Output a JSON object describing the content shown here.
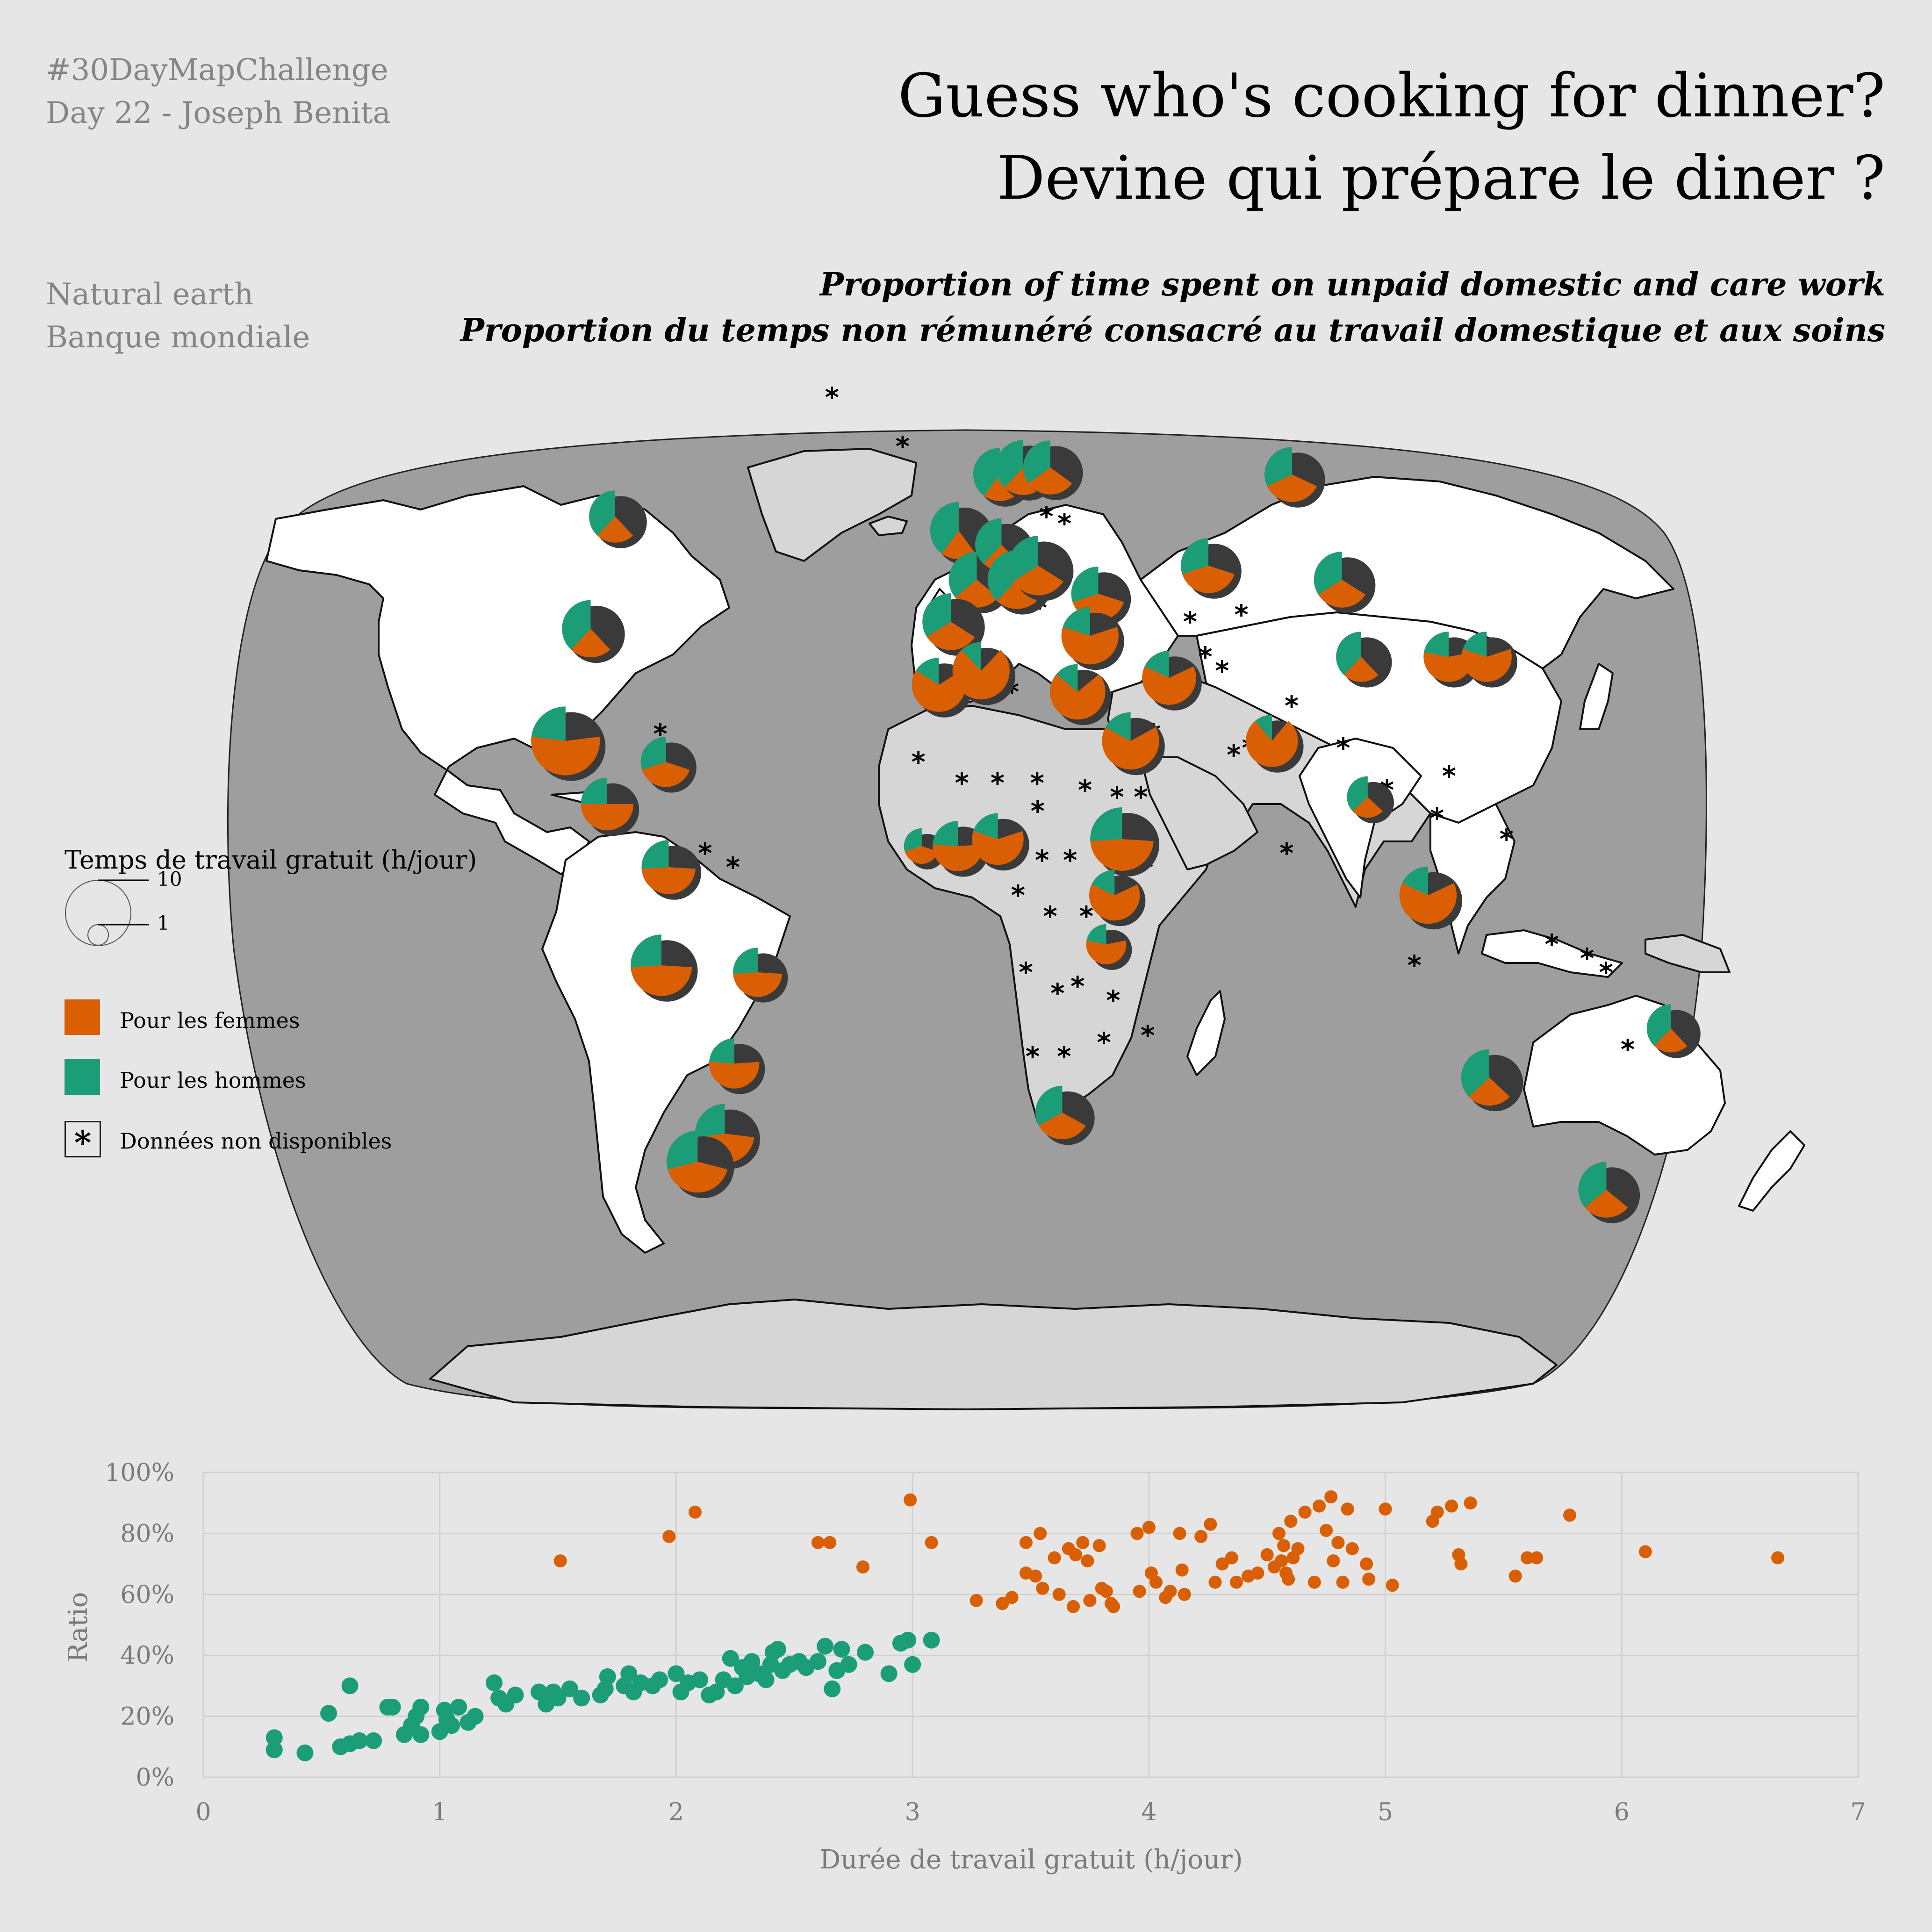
{
  "header": {
    "hashtag": "#30DayMapChallenge",
    "author_line": "Day 22 - Joseph Benita",
    "source_1": "Natural earth",
    "source_2": "Banque mondiale",
    "title_en": "Guess who's cooking for dinner?",
    "title_fr": "Devine qui prépare le diner ?",
    "subtitle_en": "Proportion of time spent on unpaid domestic and care work",
    "subtitle_fr": "Proportion du temps non rémunéré consacré au travail domestique et aux soins"
  },
  "colors": {
    "background": "#e6e6e6",
    "ocean": "#9e9e9e",
    "land_with_data": "#ffffff",
    "land_no_data": "#d6d6d6",
    "women": "#d95f02",
    "men": "#1b9e77",
    "pie_shadow": "#3a3a3a",
    "grid": "#d0d0d0",
    "axis_text": "#7a7a7a"
  },
  "legend": {
    "title": "Temps de travail gratuit (h/jour)",
    "size_large": "10",
    "size_small": "1",
    "women_label": "Pour les femmes",
    "men_label": "Pour les hommes",
    "na_symbol": "*",
    "na_label": "Données non disponibles"
  },
  "map_pies_lonlat_note": "",
  "map_pies": [
    {
      "lon": -100,
      "lat": 55,
      "women_share": 0.62,
      "total": 5.4
    },
    {
      "lon": -100,
      "lat": 39,
      "women_share": 0.62,
      "total": 6.5
    },
    {
      "lon": -102,
      "lat": 23,
      "women_share": 0.77,
      "total": 9.4
    },
    {
      "lon": -76,
      "lat": 20,
      "women_share": 0.7,
      "total": 5.0
    },
    {
      "lon": -90,
      "lat": 14,
      "women_share": 0.75,
      "total": 5.5
    },
    {
      "lon": -74,
      "lat": 5,
      "women_share": 0.74,
      "total": 5.8
    },
    {
      "lon": -76,
      "lat": -9,
      "women_share": 0.74,
      "total": 7.5
    },
    {
      "lon": -52,
      "lat": -10,
      "women_share": 0.74,
      "total": 4.8
    },
    {
      "lon": -59,
      "lat": -23,
      "women_share": 0.76,
      "total": 5.0
    },
    {
      "lon": -63,
      "lat": -33,
      "women_share": 0.73,
      "total": 7.0
    },
    {
      "lon": -71,
      "lat": -37,
      "women_share": 0.71,
      "total": 7.6
    },
    {
      "lon": 10,
      "lat": 61,
      "women_share": 0.6,
      "total": 5.6
    },
    {
      "lon": -2,
      "lat": 53,
      "women_share": 0.6,
      "total": 6.5
    },
    {
      "lon": 17,
      "lat": 62,
      "women_share": 0.62,
      "total": 6.0
    },
    {
      "lon": 25,
      "lat": 62,
      "women_share": 0.65,
      "total": 5.8
    },
    {
      "lon": 96,
      "lat": 61,
      "women_share": 0.68,
      "total": 6.0
    },
    {
      "lon": 3,
      "lat": 46,
      "women_share": 0.64,
      "total": 6.2
    },
    {
      "lon": 10,
      "lat": 51,
      "women_share": 0.62,
      "total": 5.5
    },
    {
      "lon": 14,
      "lat": 46,
      "women_share": 0.62,
      "total": 6.8
    },
    {
      "lon": 20,
      "lat": 48,
      "women_share": 0.66,
      "total": 7.0
    },
    {
      "lon": -4,
      "lat": 40,
      "women_share": 0.66,
      "total": 6.4
    },
    {
      "lon": 36,
      "lat": 44,
      "women_share": 0.7,
      "total": 5.8
    },
    {
      "lon": 67,
      "lat": 48,
      "women_share": 0.7,
      "total": 6.0
    },
    {
      "lon": 103,
      "lat": 46,
      "women_share": 0.66,
      "total": 6.2
    },
    {
      "lon": 104,
      "lat": 35,
      "women_share": 0.62,
      "total": 5.0
    },
    {
      "lon": 127,
      "lat": 35,
      "women_share": 0.78,
      "total": 5.0
    },
    {
      "lon": 137,
      "lat": 35,
      "women_share": 0.8,
      "total": 5.0
    },
    {
      "lon": 33,
      "lat": 38,
      "women_share": 0.8,
      "total": 6.5
    },
    {
      "lon": -7,
      "lat": 31,
      "women_share": 0.84,
      "total": 5.8
    },
    {
      "lon": 4,
      "lat": 33,
      "women_share": 0.88,
      "total": 6.5
    },
    {
      "lon": 29,
      "lat": 30,
      "women_share": 0.86,
      "total": 6.1
    },
    {
      "lon": 42,
      "lat": 23,
      "women_share": 0.83,
      "total": 6.5
    },
    {
      "lon": 53,
      "lat": 32,
      "women_share": 0.82,
      "total": 5.8
    },
    {
      "lon": 78,
      "lat": 23,
      "women_share": 0.89,
      "total": 5.4
    },
    {
      "lon": 101,
      "lat": 15,
      "women_share": 0.63,
      "total": 3.4
    },
    {
      "lon": 115,
      "lat": 1,
      "women_share": 0.82,
      "total": 6.5
    },
    {
      "lon": -11,
      "lat": 8,
      "women_share": 0.7,
      "total": 2.5
    },
    {
      "lon": -2,
      "lat": 8,
      "women_share": 0.76,
      "total": 5.0
    },
    {
      "lon": 8,
      "lat": 9,
      "women_share": 0.8,
      "total": 5.3
    },
    {
      "lon": 39,
      "lat": 9,
      "women_share": 0.74,
      "total": 8.0
    },
    {
      "lon": 37,
      "lat": 1,
      "women_share": 0.82,
      "total": 5.1
    },
    {
      "lon": 35,
      "lat": -6,
      "women_share": 0.78,
      "total": 3.2
    },
    {
      "lon": 25,
      "lat": -30,
      "women_share": 0.67,
      "total": 5.7
    },
    {
      "lon": 134,
      "lat": -25,
      "women_share": 0.63,
      "total": 6.3
    },
    {
      "lon": 172,
      "lat": -41,
      "women_share": 0.64,
      "total": 6.2
    },
    {
      "lon": 178,
      "lat": -18,
      "women_share": 0.62,
      "total": 4.6
    }
  ],
  "map_na_marks": [
    {
      "lon": -42,
      "lat": 72
    },
    {
      "lon": -19,
      "lat": 65
    },
    {
      "lon": 12,
      "lat": 30
    },
    {
      "lon": -12,
      "lat": 20
    },
    {
      "lon": -1,
      "lat": 17
    },
    {
      "lon": 8,
      "lat": 17
    },
    {
      "lon": 18,
      "lat": 17
    },
    {
      "lon": 30,
      "lat": 16
    },
    {
      "lon": 38,
      "lat": 15
    },
    {
      "lon": 44,
      "lat": 15
    },
    {
      "lon": 48,
      "lat": 24
    },
    {
      "lon": 54,
      "lat": 33
    },
    {
      "lon": 67,
      "lat": 33
    },
    {
      "lon": 63,
      "lat": 35
    },
    {
      "lon": 60,
      "lat": 40
    },
    {
      "lon": 74,
      "lat": 41
    },
    {
      "lon": 84,
      "lat": 28
    },
    {
      "lon": 72,
      "lat": 22
    },
    {
      "lon": 96,
      "lat": 22
    },
    {
      "lon": 106,
      "lat": 16
    },
    {
      "lon": 118,
      "lat": 12
    },
    {
      "lon": 122,
      "lat": 18
    },
    {
      "lon": 146,
      "lat": -6
    },
    {
      "lon": 155,
      "lat": -8
    },
    {
      "lon": 160,
      "lat": -10
    },
    {
      "lon": 168,
      "lat": -21
    },
    {
      "lon": 46,
      "lat": -19
    },
    {
      "lon": 23,
      "lat": -13
    },
    {
      "lon": 28,
      "lat": -12
    },
    {
      "lon": 15,
      "lat": -10
    },
    {
      "lon": 21,
      "lat": -2
    },
    {
      "lon": 26,
      "lat": 6
    },
    {
      "lon": 19,
      "lat": 6
    },
    {
      "lon": 13,
      "lat": 1
    },
    {
      "lon": 18,
      "lat": 13
    },
    {
      "lon": 35,
      "lat": -20
    },
    {
      "lon": 17,
      "lat": -22
    },
    {
      "lon": 25,
      "lat": -22
    },
    {
      "lon": 37,
      "lat": -14
    },
    {
      "lon": 30,
      "lat": -2
    },
    {
      "lon": 45,
      "lat": 5
    },
    {
      "lon": -65,
      "lat": 7
    },
    {
      "lon": -58,
      "lat": 5
    },
    {
      "lon": -78,
      "lat": 24
    },
    {
      "lon": 23,
      "lat": 55
    },
    {
      "lon": 28,
      "lat": 54
    },
    {
      "lon": 20,
      "lat": 42
    },
    {
      "lon": 68,
      "lat": 21
    },
    {
      "lon": 80,
      "lat": 7
    },
    {
      "lon": 112,
      "lat": -9
    },
    {
      "lon": 135,
      "lat": 9
    }
  ],
  "chart_data": {
    "type": "scatter",
    "xlabel": "Durée de travail  gratuit (h/jour)",
    "ylabel": "Ratio",
    "xlim": [
      0,
      7
    ],
    "ylim": [
      0,
      1
    ],
    "x_ticks": [
      "0",
      "1",
      "2",
      "3",
      "4",
      "5",
      "6",
      "7"
    ],
    "y_ticks": [
      "0%",
      "20%",
      "40%",
      "60%",
      "80%",
      "100%"
    ],
    "grid": true,
    "series": [
      {
        "color": "#d95f02",
        "points": [
          [
            1.51,
            0.71
          ],
          [
            1.97,
            0.79
          ],
          [
            2.08,
            0.87
          ],
          [
            2.6,
            0.77
          ],
          [
            2.65,
            0.77
          ],
          [
            2.79,
            0.69
          ],
          [
            2.99,
            0.91
          ],
          [
            3.08,
            0.77
          ],
          [
            3.27,
            0.58
          ],
          [
            3.38,
            0.57
          ],
          [
            3.42,
            0.59
          ],
          [
            3.48,
            0.67
          ],
          [
            3.48,
            0.77
          ],
          [
            3.52,
            0.66
          ],
          [
            3.54,
            0.8
          ],
          [
            3.55,
            0.62
          ],
          [
            3.6,
            0.72
          ],
          [
            3.62,
            0.6
          ],
          [
            3.66,
            0.75
          ],
          [
            3.68,
            0.56
          ],
          [
            3.69,
            0.73
          ],
          [
            3.72,
            0.77
          ],
          [
            3.74,
            0.71
          ],
          [
            3.75,
            0.58
          ],
          [
            3.79,
            0.76
          ],
          [
            3.8,
            0.62
          ],
          [
            3.82,
            0.61
          ],
          [
            3.84,
            0.57
          ],
          [
            3.85,
            0.56
          ],
          [
            3.95,
            0.8
          ],
          [
            3.96,
            0.61
          ],
          [
            4.0,
            0.82
          ],
          [
            4.01,
            0.67
          ],
          [
            4.03,
            0.64
          ],
          [
            4.07,
            0.59
          ],
          [
            4.09,
            0.61
          ],
          [
            4.13,
            0.8
          ],
          [
            4.14,
            0.68
          ],
          [
            4.15,
            0.6
          ],
          [
            4.22,
            0.79
          ],
          [
            4.26,
            0.83
          ],
          [
            4.28,
            0.64
          ],
          [
            4.31,
            0.7
          ],
          [
            4.35,
            0.72
          ],
          [
            4.37,
            0.64
          ],
          [
            4.42,
            0.66
          ],
          [
            4.46,
            0.67
          ],
          [
            4.5,
            0.73
          ],
          [
            4.53,
            0.69
          ],
          [
            4.55,
            0.8
          ],
          [
            4.56,
            0.71
          ],
          [
            4.57,
            0.76
          ],
          [
            4.58,
            0.67
          ],
          [
            4.59,
            0.65
          ],
          [
            4.6,
            0.84
          ],
          [
            4.61,
            0.72
          ],
          [
            4.63,
            0.75
          ],
          [
            4.66,
            0.87
          ],
          [
            4.7,
            0.64
          ],
          [
            4.72,
            0.89
          ],
          [
            4.75,
            0.81
          ],
          [
            4.77,
            0.92
          ],
          [
            4.78,
            0.71
          ],
          [
            4.8,
            0.77
          ],
          [
            4.82,
            0.64
          ],
          [
            4.84,
            0.88
          ],
          [
            4.86,
            0.75
          ],
          [
            4.92,
            0.7
          ],
          [
            4.93,
            0.65
          ],
          [
            5.0,
            0.88
          ],
          [
            5.03,
            0.63
          ],
          [
            5.2,
            0.84
          ],
          [
            5.22,
            0.87
          ],
          [
            5.28,
            0.89
          ],
          [
            5.31,
            0.73
          ],
          [
            5.32,
            0.7
          ],
          [
            5.36,
            0.9
          ],
          [
            5.55,
            0.66
          ],
          [
            5.6,
            0.72
          ],
          [
            5.64,
            0.72
          ],
          [
            5.78,
            0.86
          ],
          [
            6.1,
            0.74
          ],
          [
            6.66,
            0.72
          ]
        ]
      },
      {
        "color": "#1b9e77",
        "points": [
          [
            0.3,
            0.13
          ],
          [
            0.3,
            0.09
          ],
          [
            0.43,
            0.08
          ],
          [
            0.53,
            0.21
          ],
          [
            0.58,
            0.1
          ],
          [
            0.62,
            0.3
          ],
          [
            0.62,
            0.11
          ],
          [
            0.66,
            0.12
          ],
          [
            0.72,
            0.12
          ],
          [
            0.78,
            0.23
          ],
          [
            0.8,
            0.23
          ],
          [
            0.85,
            0.14
          ],
          [
            0.88,
            0.17
          ],
          [
            0.9,
            0.2
          ],
          [
            0.92,
            0.23
          ],
          [
            0.92,
            0.14
          ],
          [
            1.0,
            0.15
          ],
          [
            1.02,
            0.22
          ],
          [
            1.03,
            0.19
          ],
          [
            1.05,
            0.17
          ],
          [
            1.08,
            0.23
          ],
          [
            1.12,
            0.18
          ],
          [
            1.15,
            0.2
          ],
          [
            1.23,
            0.31
          ],
          [
            1.25,
            0.26
          ],
          [
            1.28,
            0.24
          ],
          [
            1.32,
            0.27
          ],
          [
            1.42,
            0.28
          ],
          [
            1.45,
            0.24
          ],
          [
            1.48,
            0.28
          ],
          [
            1.5,
            0.26
          ],
          [
            1.55,
            0.29
          ],
          [
            1.6,
            0.26
          ],
          [
            1.68,
            0.27
          ],
          [
            1.7,
            0.29
          ],
          [
            1.71,
            0.33
          ],
          [
            1.78,
            0.3
          ],
          [
            1.8,
            0.34
          ],
          [
            1.82,
            0.28
          ],
          [
            1.85,
            0.31
          ],
          [
            1.9,
            0.3
          ],
          [
            1.93,
            0.32
          ],
          [
            2.0,
            0.34
          ],
          [
            2.02,
            0.28
          ],
          [
            2.05,
            0.31
          ],
          [
            2.1,
            0.32
          ],
          [
            2.14,
            0.27
          ],
          [
            2.17,
            0.28
          ],
          [
            2.2,
            0.32
          ],
          [
            2.23,
            0.39
          ],
          [
            2.25,
            0.3
          ],
          [
            2.28,
            0.36
          ],
          [
            2.3,
            0.33
          ],
          [
            2.32,
            0.38
          ],
          [
            2.35,
            0.34
          ],
          [
            2.38,
            0.32
          ],
          [
            2.4,
            0.37
          ],
          [
            2.41,
            0.41
          ],
          [
            2.43,
            0.42
          ],
          [
            2.45,
            0.35
          ],
          [
            2.48,
            0.37
          ],
          [
            2.52,
            0.38
          ],
          [
            2.55,
            0.36
          ],
          [
            2.6,
            0.38
          ],
          [
            2.63,
            0.43
          ],
          [
            2.66,
            0.29
          ],
          [
            2.68,
            0.35
          ],
          [
            2.7,
            0.42
          ],
          [
            2.73,
            0.37
          ],
          [
            2.8,
            0.41
          ],
          [
            2.9,
            0.34
          ],
          [
            2.95,
            0.44
          ],
          [
            2.98,
            0.45
          ],
          [
            3.0,
            0.37
          ],
          [
            3.08,
            0.45
          ]
        ]
      }
    ]
  }
}
